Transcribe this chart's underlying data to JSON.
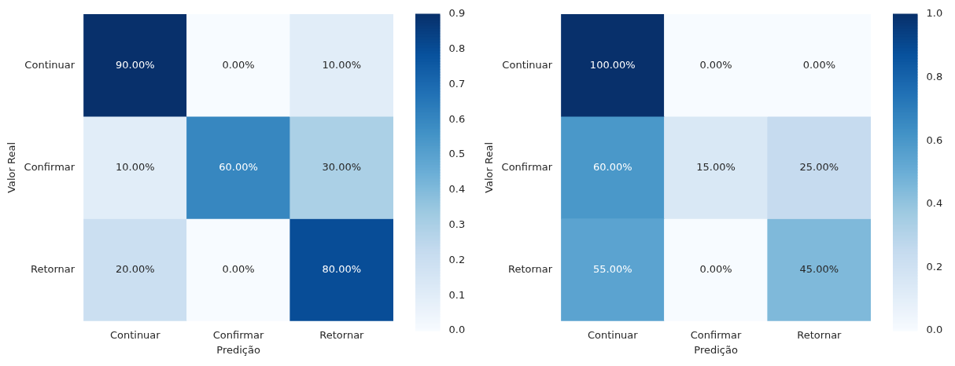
{
  "chart_data": [
    {
      "type": "heatmap",
      "xlabel": "Predição",
      "ylabel": "Valor Real",
      "categories": [
        "Continuar",
        "Confirmar",
        "Retornar"
      ],
      "y_categories": [
        "Continuar",
        "Confirmar",
        "Retornar"
      ],
      "cells": [
        [
          0.9,
          0.0,
          0.1
        ],
        [
          0.1,
          0.6,
          0.3
        ],
        [
          0.2,
          0.0,
          0.8
        ]
      ],
      "cell_labels": [
        [
          "90.00%",
          "0.00%",
          "10.00%"
        ],
        [
          "10.00%",
          "60.00%",
          "30.00%"
        ],
        [
          "20.00%",
          "0.00%",
          "80.00%"
        ]
      ],
      "clim": [
        0,
        0.9
      ],
      "cticks": [
        {
          "value": 0,
          "label": "0.0"
        },
        {
          "value": 0.1,
          "label": "0.1"
        },
        {
          "value": 0.2,
          "label": "0.2"
        },
        {
          "value": 0.3,
          "label": "0.3"
        },
        {
          "value": 0.4,
          "label": "0.4"
        },
        {
          "value": 0.5,
          "label": "0.5"
        },
        {
          "value": 0.6,
          "label": "0.6"
        },
        {
          "value": 0.7,
          "label": "0.7"
        },
        {
          "value": 0.8,
          "label": "0.8"
        },
        {
          "value": 0.9,
          "label": "0.9"
        }
      ]
    },
    {
      "type": "heatmap",
      "xlabel": "Predição",
      "ylabel": "Valor Real",
      "categories": [
        "Continuar",
        "Confirmar",
        "Retornar"
      ],
      "y_categories": [
        "Continuar",
        "Confirmar",
        "Retornar"
      ],
      "cells": [
        [
          1.0,
          0.0,
          0.0
        ],
        [
          0.6,
          0.15,
          0.25
        ],
        [
          0.55,
          0.0,
          0.45
        ]
      ],
      "cell_labels": [
        [
          "100.00%",
          "0.00%",
          "0.00%"
        ],
        [
          "60.00%",
          "15.00%",
          "25.00%"
        ],
        [
          "55.00%",
          "0.00%",
          "45.00%"
        ]
      ],
      "clim": [
        0,
        1
      ],
      "cticks": [
        {
          "value": 0,
          "label": "0.0"
        },
        {
          "value": 0.2,
          "label": "0.2"
        },
        {
          "value": 0.4,
          "label": "0.4"
        },
        {
          "value": 0.6,
          "label": "0.6"
        },
        {
          "value": 0.8,
          "label": "0.8"
        },
        {
          "value": 1,
          "label": "1.0"
        }
      ]
    }
  ]
}
